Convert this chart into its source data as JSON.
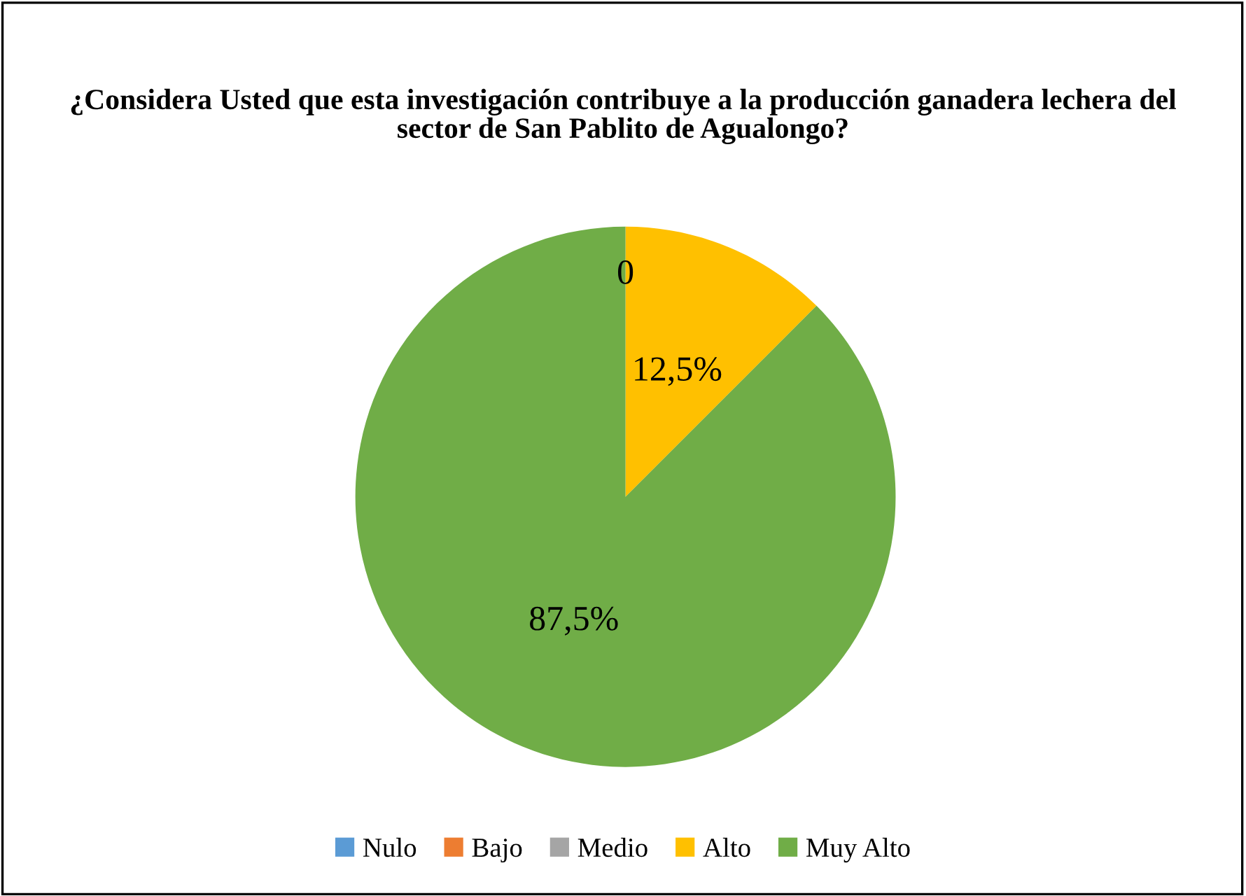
{
  "chart_data": {
    "type": "pie",
    "title": "¿Considera Usted que esta investigación contribuye a la producción ganadera lechera del sector de San Pablito de Agualongo?",
    "categories": [
      "Nulo",
      "Bajo",
      "Medio",
      "Alto",
      "Muy Alto"
    ],
    "values": [
      0,
      0,
      0,
      12.5,
      87.5
    ],
    "colors": [
      "#5b9bd5",
      "#ed7d31",
      "#a5a5a5",
      "#ffc000",
      "#70ad47"
    ],
    "value_labels": [
      "0",
      null,
      null,
      "12,5%",
      "87,5%"
    ],
    "legend": "bottom"
  }
}
